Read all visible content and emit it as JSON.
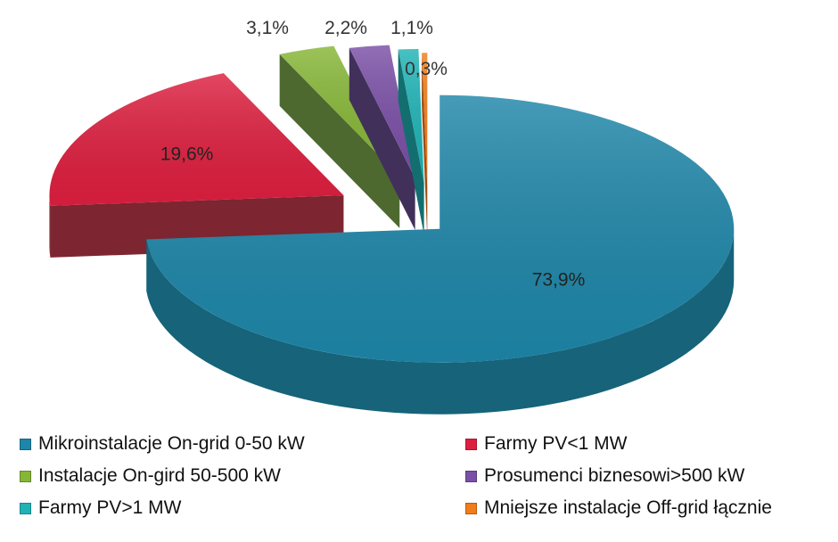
{
  "chart_data": {
    "type": "pie",
    "title": "",
    "categories": [
      "Mikroinstalacje On-grid 0-50 kW",
      "Farmy PV<1 MW",
      "Instalacje On-gird 50-500 kW",
      "Prosumenci biznesowi>500 kW",
      "Farmy PV>1 MW",
      "Mniejsze instalacje Off-grid łącznie"
    ],
    "values": [
      73.9,
      19.6,
      3.1,
      2.2,
      1.1,
      0.3
    ],
    "labels": [
      "73,9%",
      "19,6%",
      "3,1%",
      "2,2%",
      "1,1%",
      "0,3%"
    ],
    "colors": [
      "#1e86a8",
      "#dd1f3f",
      "#86b636",
      "#7a4fa6",
      "#1fb3b6",
      "#f07d1a"
    ],
    "side_colors": [
      "#16637a",
      "#7d2530",
      "#4d6930",
      "#41305a",
      "#136e70",
      "#9a4d12"
    ],
    "style": "3d-exploded",
    "legend_position": "bottom"
  }
}
